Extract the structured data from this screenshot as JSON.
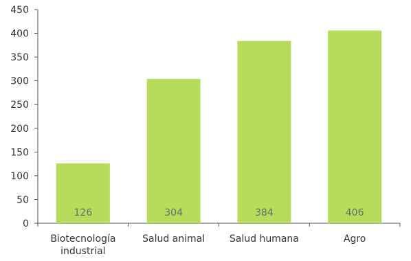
{
  "chart_data": {
    "type": "bar",
    "categories": [
      [
        "Biotecnología",
        "industrial"
      ],
      [
        "Salud animal"
      ],
      [
        "Salud humana"
      ],
      [
        "Agro"
      ]
    ],
    "values": [
      126,
      304,
      384,
      406
    ],
    "data_labels": [
      "126",
      "304",
      "384",
      "406"
    ],
    "ylim": [
      0,
      450
    ],
    "yticks": [
      "0",
      "50",
      "100",
      "150",
      "200",
      "250",
      "300",
      "350",
      "400",
      "450"
    ],
    "title": "",
    "xlabel": "",
    "ylabel": "",
    "grid": false,
    "legend": "none",
    "colors": {
      "bar": "#b5dd5b",
      "axis": "#555555",
      "tick_text": "#333333",
      "data_label": "#6a6a6a"
    }
  }
}
